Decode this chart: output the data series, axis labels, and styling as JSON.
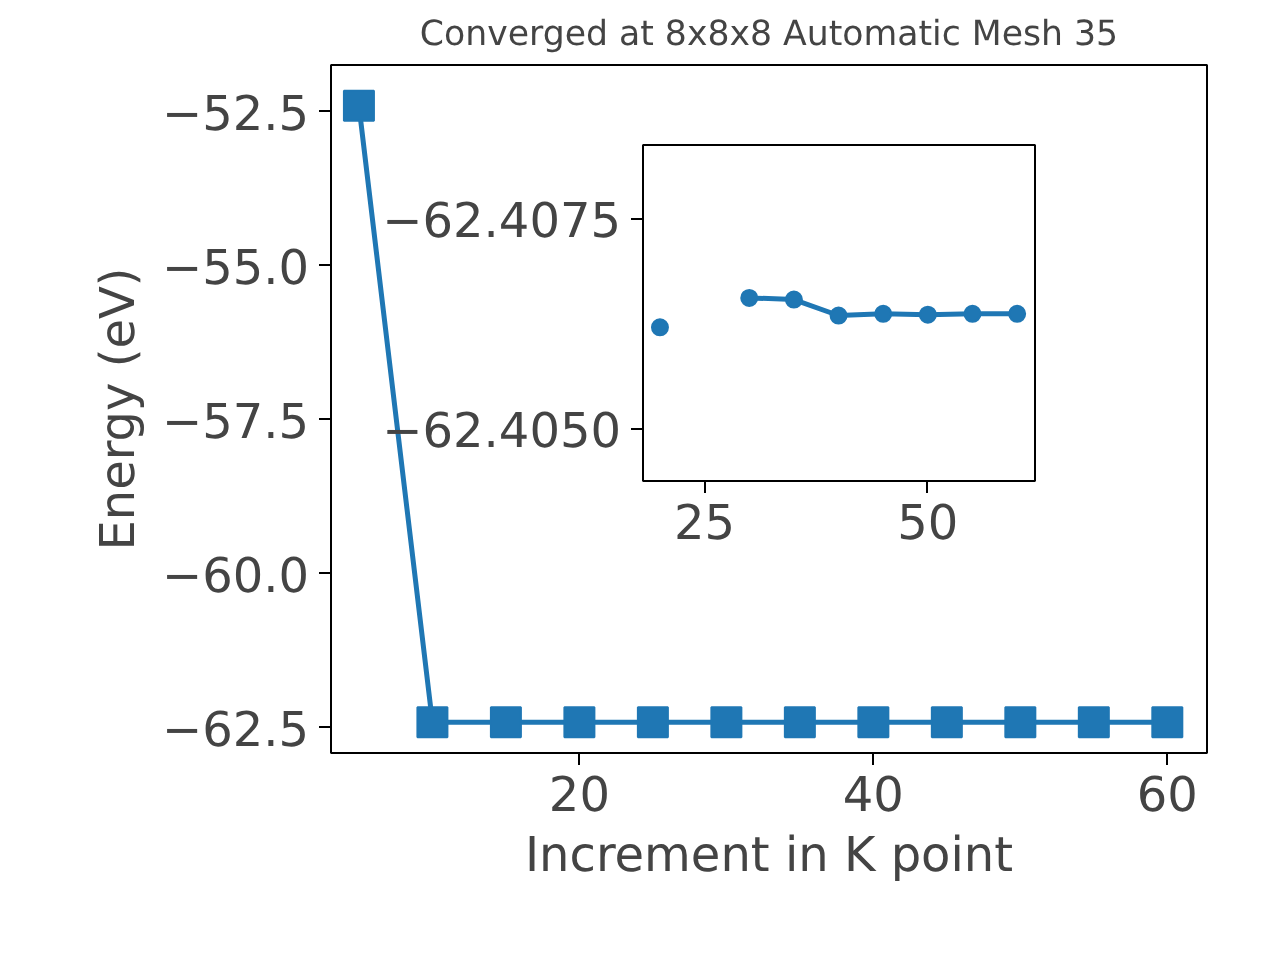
{
  "chart_data": [
    {
      "type": "line",
      "title": "Converged at 8x8x8 Automatic Mesh 35",
      "xlabel": "Increment in K point",
      "ylabel": "Energy (eV)",
      "marker": "square",
      "x": [
        5,
        10,
        15,
        20,
        25,
        30,
        35,
        40,
        45,
        50,
        55,
        60
      ],
      "series": [
        {
          "color": "#1f77b4",
          "values": [
            -52.4,
            -62.41,
            -62.41,
            -62.41,
            -62.41,
            -62.41,
            -62.41,
            -62.41,
            -62.41,
            -62.41,
            -62.41,
            -62.41
          ]
        }
      ],
      "xlim": [
        3.1,
        62.7
      ],
      "ylim": [
        -62.91,
        -51.74
      ],
      "xticks": [
        20,
        40,
        60
      ],
      "yticks": [
        {
          "value": -62.5,
          "label": "−62.5"
        },
        {
          "value": -60,
          "label": "−60.0"
        },
        {
          "value": -57.5,
          "label": "−57.5"
        },
        {
          "value": -55,
          "label": "−55.0"
        },
        {
          "value": -52.5,
          "label": "−52.5"
        }
      ]
    },
    {
      "type": "line",
      "marker": "circle",
      "x": [
        20,
        25,
        30,
        35,
        40,
        45,
        50,
        55,
        60
      ],
      "series": [
        {
          "color": "#1f77b4",
          "values": [
            -62.40621,
            null,
            -62.40656,
            -62.40654,
            -62.40635,
            -62.40637,
            -62.40636,
            -62.40637,
            -62.40637
          ]
        }
      ],
      "xlim": [
        18.1,
        62.0
      ],
      "ylim": [
        -62.40438,
        -62.40838
      ],
      "xticks": [
        25,
        50
      ],
      "yticks": [
        {
          "value": -62.4075,
          "label": "−62.4075"
        },
        {
          "value": -62.405,
          "label": "−62.4050"
        }
      ]
    }
  ]
}
